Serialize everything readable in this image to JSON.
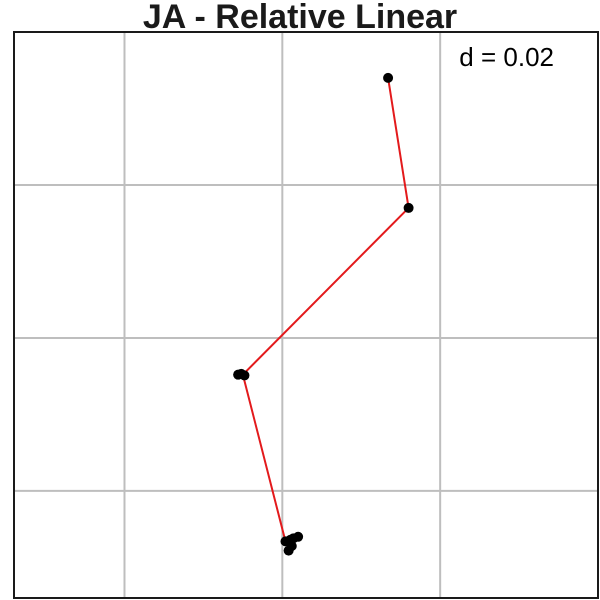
{
  "chart_data": {
    "type": "scatter",
    "title": "JA -  Relative  Linear",
    "annotation": "d = 0.02",
    "xlabel": "",
    "ylabel": "",
    "xlim": [
      -1.7,
      2.0
    ],
    "ylim": [
      -0.7,
      3.0
    ],
    "grid": true,
    "x_gridlines": [
      -1,
      0,
      1,
      2
    ],
    "y_gridlines": [
      0,
      1,
      2,
      3
    ],
    "tick_labels_shown": false,
    "colors": {
      "points": "#000000",
      "path": "#e31a1c",
      "grid": "#bebebe",
      "border": "#1a1a1a"
    },
    "path": [
      {
        "x": 0.67,
        "y": 2.7
      },
      {
        "x": 0.8,
        "y": 1.85
      },
      {
        "x": -0.25,
        "y": 0.76
      },
      {
        "x": 0.02,
        "y": -0.33
      }
    ],
    "points": [
      {
        "x": 0.67,
        "y": 2.7
      },
      {
        "x": 0.8,
        "y": 1.85
      },
      {
        "x": -0.28,
        "y": 0.76
      },
      {
        "x": -0.24,
        "y": 0.755
      },
      {
        "x": -0.26,
        "y": 0.765
      },
      {
        "x": 0.02,
        "y": -0.33
      },
      {
        "x": 0.05,
        "y": -0.32
      },
      {
        "x": 0.07,
        "y": -0.31
      },
      {
        "x": 0.1,
        "y": -0.3
      },
      {
        "x": 0.04,
        "y": -0.39
      },
      {
        "x": 0.06,
        "y": -0.36
      }
    ]
  }
}
